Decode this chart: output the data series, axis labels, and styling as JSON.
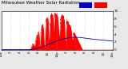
{
  "title": "Milwaukee Weather Solar Radiation",
  "bg_color": "#e8e8e8",
  "plot_bg": "#ffffff",
  "fill_color": "#ff0000",
  "line_color": "#ff0000",
  "legend_color1": "#0000cc",
  "legend_color2": "#ff0000",
  "xlim": [
    0,
    1440
  ],
  "ylim": [
    0,
    1000
  ],
  "ytick_vals": [
    0,
    200,
    400,
    600,
    800,
    1000
  ],
  "ytick_labels": [
    "0",
    "2",
    "4",
    "6",
    "8",
    "10"
  ],
  "xtick_positions": [
    0,
    120,
    240,
    360,
    480,
    600,
    720,
    840,
    960,
    1080,
    1200,
    1320,
    1440
  ],
  "xtick_labels": [
    "12a",
    "2",
    "4",
    "6",
    "8",
    "10",
    "12p",
    "2",
    "4",
    "6",
    "8",
    "10",
    "12a"
  ],
  "grid_color": "#aaaaaa",
  "title_fontsize": 4.0,
  "tick_fontsize": 3.0,
  "solar_seed": 42,
  "sunrise": 370,
  "sunset": 1050,
  "peak": 720,
  "peak_val": 900
}
